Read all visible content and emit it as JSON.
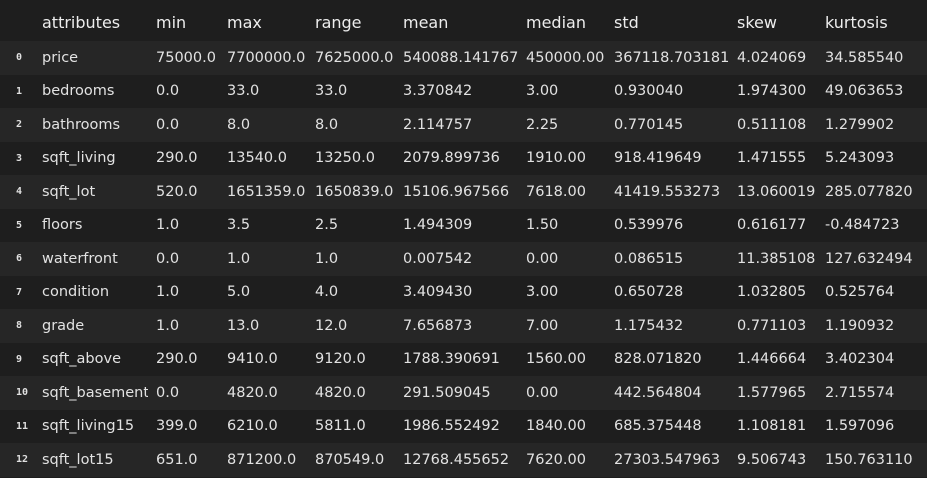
{
  "table": {
    "headers": [
      "",
      "attributes",
      "min",
      "max",
      "range",
      "mean",
      "median",
      "std",
      "skew",
      "kurtosis"
    ],
    "rows": [
      [
        "0",
        "price",
        "75000.0",
        "7700000.0",
        "7625000.0",
        "540088.141767",
        "450000.00",
        "367118.703181",
        "4.024069",
        "34.585540"
      ],
      [
        "1",
        "bedrooms",
        "0.0",
        "33.0",
        "33.0",
        "3.370842",
        "3.00",
        "0.930040",
        "1.974300",
        "49.063653"
      ],
      [
        "2",
        "bathrooms",
        "0.0",
        "8.0",
        "8.0",
        "2.114757",
        "2.25",
        "0.770145",
        "0.511108",
        "1.279902"
      ],
      [
        "3",
        "sqft_living",
        "290.0",
        "13540.0",
        "13250.0",
        "2079.899736",
        "1910.00",
        "918.419649",
        "1.471555",
        "5.243093"
      ],
      [
        "4",
        "sqft_lot",
        "520.0",
        "1651359.0",
        "1650839.0",
        "15106.967566",
        "7618.00",
        "41419.553273",
        "13.060019",
        "285.077820"
      ],
      [
        "5",
        "floors",
        "1.0",
        "3.5",
        "2.5",
        "1.494309",
        "1.50",
        "0.539976",
        "0.616177",
        "-0.484723"
      ],
      [
        "6",
        "waterfront",
        "0.0",
        "1.0",
        "1.0",
        "0.007542",
        "0.00",
        "0.086515",
        "11.385108",
        "127.632494"
      ],
      [
        "7",
        "condition",
        "1.0",
        "5.0",
        "4.0",
        "3.409430",
        "3.00",
        "0.650728",
        "1.032805",
        "0.525764"
      ],
      [
        "8",
        "grade",
        "1.0",
        "13.0",
        "12.0",
        "7.656873",
        "7.00",
        "1.175432",
        "0.771103",
        "1.190932"
      ],
      [
        "9",
        "sqft_above",
        "290.0",
        "9410.0",
        "9120.0",
        "1788.390691",
        "1560.00",
        "828.071820",
        "1.446664",
        "3.402304"
      ],
      [
        "10",
        "sqft_basement",
        "0.0",
        "4820.0",
        "4820.0",
        "291.509045",
        "0.00",
        "442.564804",
        "1.577965",
        "2.715574"
      ],
      [
        "11",
        "sqft_living15",
        "399.0",
        "6210.0",
        "5811.0",
        "1986.552492",
        "1840.00",
        "685.375448",
        "1.108181",
        "1.597096"
      ],
      [
        "12",
        "sqft_lot15",
        "651.0",
        "871200.0",
        "870549.0",
        "12768.455652",
        "7620.00",
        "27303.547963",
        "9.506743",
        "150.763110"
      ]
    ]
  }
}
